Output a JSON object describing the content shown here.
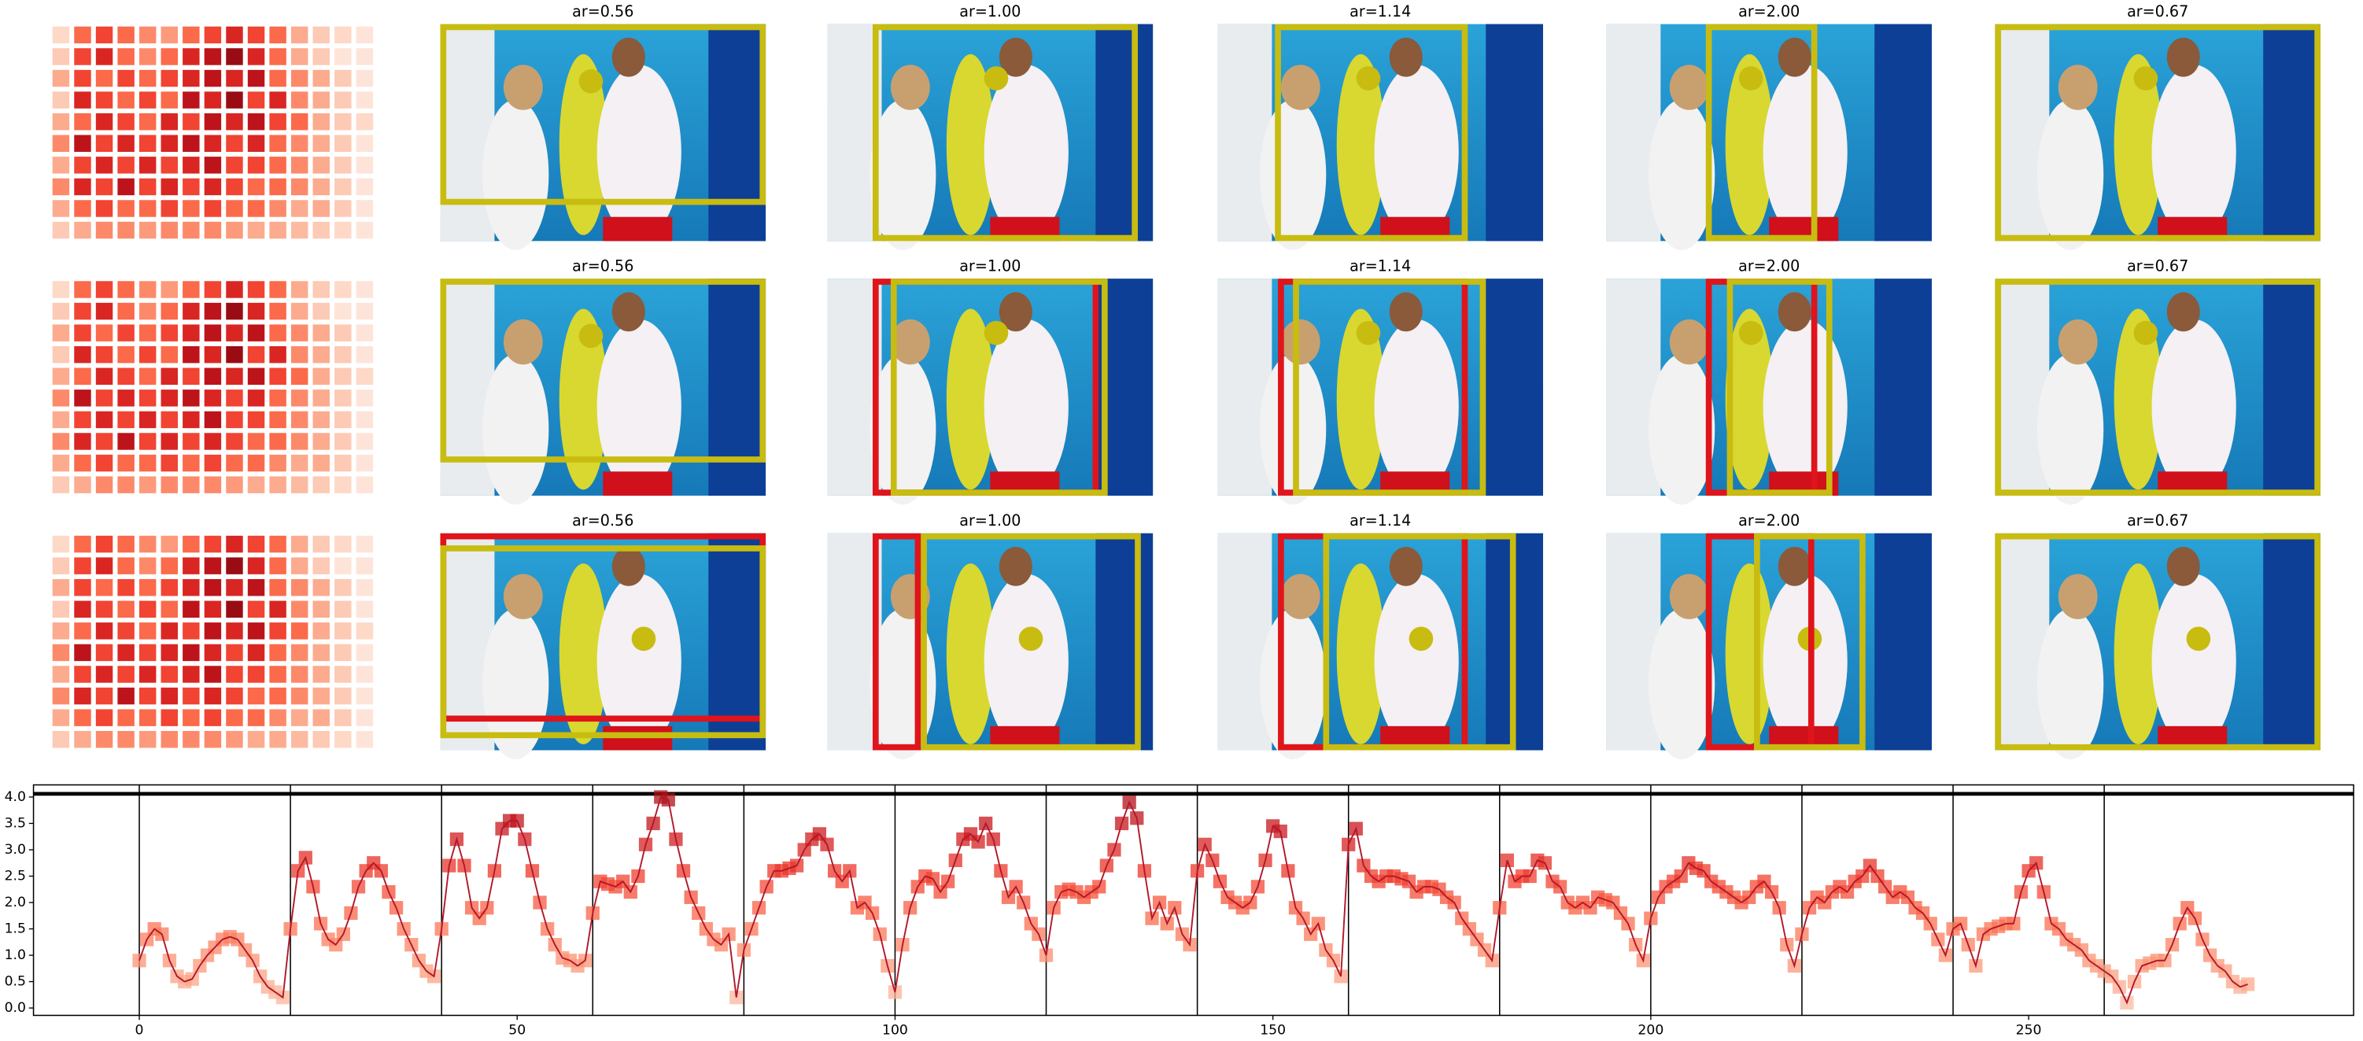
{
  "panel_rows": [
    {
      "titles": [
        "ar=0.56",
        "ar=1.00",
        "ar=1.14",
        "ar=2.00",
        "ar=0.67"
      ]
    },
    {
      "titles": [
        "ar=0.56",
        "ar=1.00",
        "ar=1.14",
        "ar=2.00",
        "ar=0.67"
      ]
    },
    {
      "titles": [
        "ar=0.56",
        "ar=1.00",
        "ar=1.14",
        "ar=2.00",
        "ar=0.67"
      ]
    }
  ],
  "heatmap": [
    [
      0.15,
      0.5,
      0.6,
      0.5,
      0.4,
      0.35,
      0.5,
      0.6,
      0.7,
      0.6,
      0.5,
      0.3,
      0.2,
      0.15,
      0.1
    ],
    [
      0.2,
      0.6,
      0.7,
      0.5,
      0.4,
      0.5,
      0.7,
      0.8,
      0.9,
      0.7,
      0.5,
      0.3,
      0.2,
      0.1,
      0.1
    ],
    [
      0.3,
      0.6,
      0.5,
      0.6,
      0.5,
      0.6,
      0.7,
      0.8,
      0.7,
      0.8,
      0.5,
      0.4,
      0.3,
      0.2,
      0.1
    ],
    [
      0.2,
      0.7,
      0.6,
      0.5,
      0.6,
      0.5,
      0.8,
      0.7,
      0.9,
      0.6,
      0.7,
      0.4,
      0.3,
      0.2,
      0.1
    ],
    [
      0.3,
      0.5,
      0.7,
      0.6,
      0.5,
      0.7,
      0.6,
      0.8,
      0.7,
      0.8,
      0.6,
      0.5,
      0.3,
      0.2,
      0.15
    ],
    [
      0.4,
      0.8,
      0.6,
      0.7,
      0.6,
      0.7,
      0.8,
      0.7,
      0.6,
      0.7,
      0.5,
      0.4,
      0.3,
      0.2,
      0.1
    ],
    [
      0.3,
      0.6,
      0.7,
      0.6,
      0.7,
      0.6,
      0.7,
      0.8,
      0.6,
      0.6,
      0.5,
      0.4,
      0.3,
      0.2,
      0.1
    ],
    [
      0.4,
      0.7,
      0.6,
      0.8,
      0.6,
      0.7,
      0.6,
      0.7,
      0.6,
      0.5,
      0.5,
      0.4,
      0.3,
      0.2,
      0.1
    ],
    [
      0.3,
      0.5,
      0.6,
      0.5,
      0.5,
      0.6,
      0.5,
      0.6,
      0.5,
      0.5,
      0.4,
      0.3,
      0.3,
      0.2,
      0.1
    ],
    [
      0.2,
      0.3,
      0.4,
      0.4,
      0.35,
      0.4,
      0.4,
      0.4,
      0.35,
      0.3,
      0.3,
      0.25,
      0.2,
      0.15,
      0.1
    ]
  ],
  "chart_data": {
    "type": "line",
    "colormap": "Reds",
    "line_color": "#b2182b",
    "values": [
      0.9,
      1.3,
      1.5,
      1.4,
      0.9,
      0.6,
      0.5,
      0.55,
      0.8,
      1.0,
      1.15,
      1.3,
      1.35,
      1.3,
      1.1,
      0.9,
      0.6,
      0.4,
      0.3,
      0.2,
      1.5,
      2.6,
      2.85,
      2.3,
      1.6,
      1.3,
      1.2,
      1.4,
      1.8,
      2.3,
      2.6,
      2.75,
      2.6,
      2.2,
      1.9,
      1.5,
      1.2,
      0.9,
      0.7,
      0.6,
      1.5,
      2.7,
      3.2,
      2.7,
      1.9,
      1.7,
      1.9,
      2.6,
      3.4,
      3.55,
      3.55,
      3.2,
      2.6,
      2.0,
      1.5,
      1.2,
      0.95,
      0.9,
      0.8,
      0.9,
      1.8,
      2.4,
      2.35,
      2.3,
      2.4,
      2.2,
      2.5,
      3.1,
      3.5,
      4.0,
      3.95,
      3.2,
      2.6,
      2.1,
      1.8,
      1.5,
      1.3,
      1.2,
      1.4,
      0.2,
      1.1,
      1.5,
      1.9,
      2.3,
      2.6,
      2.6,
      2.65,
      2.7,
      3.0,
      3.2,
      3.3,
      3.1,
      2.6,
      2.4,
      2.6,
      1.9,
      2.0,
      1.8,
      1.4,
      0.8,
      0.3,
      1.2,
      1.9,
      2.3,
      2.5,
      2.45,
      2.2,
      2.4,
      2.8,
      3.2,
      3.3,
      3.15,
      3.5,
      3.2,
      2.6,
      2.1,
      2.3,
      2.0,
      1.6,
      1.4,
      1.0,
      1.9,
      2.2,
      2.25,
      2.2,
      2.1,
      2.2,
      2.3,
      2.7,
      3.0,
      3.5,
      3.9,
      3.6,
      2.6,
      1.7,
      2.0,
      1.6,
      1.9,
      1.4,
      1.2,
      2.6,
      3.1,
      2.8,
      2.4,
      2.1,
      2.0,
      1.9,
      2.0,
      2.3,
      2.8,
      3.45,
      3.35,
      2.6,
      1.9,
      1.7,
      1.4,
      1.6,
      1.1,
      0.9,
      0.6,
      3.1,
      3.4,
      2.7,
      2.5,
      2.4,
      2.5,
      2.5,
      2.45,
      2.4,
      2.2,
      2.3,
      2.3,
      2.25,
      2.1,
      2.0,
      1.7,
      1.5,
      1.3,
      1.1,
      0.9,
      1.9,
      2.8,
      2.4,
      2.5,
      2.5,
      2.8,
      2.75,
      2.4,
      2.3,
      2.0,
      1.9,
      2.0,
      1.9,
      2.1,
      2.05,
      2.0,
      1.8,
      1.6,
      1.2,
      0.9,
      1.7,
      2.1,
      2.3,
      2.4,
      2.5,
      2.75,
      2.65,
      2.6,
      2.4,
      2.3,
      2.2,
      2.1,
      2.0,
      2.1,
      2.3,
      2.4,
      2.2,
      1.9,
      1.2,
      0.8,
      1.4,
      1.9,
      2.1,
      2.0,
      2.2,
      2.3,
      2.2,
      2.4,
      2.5,
      2.7,
      2.5,
      2.3,
      2.1,
      2.2,
      2.1,
      1.9,
      1.8,
      1.6,
      1.3,
      1.0,
      1.5,
      1.6,
      1.2,
      0.8,
      1.4,
      1.5,
      1.55,
      1.6,
      1.6,
      2.2,
      2.6,
      2.75,
      2.2,
      1.6,
      1.5,
      1.3,
      1.2,
      1.1,
      0.9,
      0.8,
      0.7,
      0.6,
      0.4,
      0.1,
      0.5,
      0.8,
      0.85,
      0.9,
      0.9,
      1.2,
      1.6,
      1.9,
      1.7,
      1.3,
      1.0,
      0.8,
      0.7,
      0.5,
      0.4,
      0.45
    ],
    "xlim": [
      -14,
      293
    ],
    "xticks": [
      0,
      50,
      100,
      150,
      200,
      250
    ],
    "ylim": [
      -0.14,
      4.23
    ],
    "yticks": [
      {
        "value": 0,
        "label": "0.0"
      },
      0.5,
      {
        "value": 1,
        "label": "1.0"
      },
      1.5,
      {
        "value": 2,
        "label": "2.0"
      },
      2.5,
      {
        "value": 3,
        "label": "3.0"
      },
      3.5,
      {
        "value": 4,
        "label": "4.0"
      }
    ],
    "vlines": [
      0,
      20,
      40,
      60,
      80,
      100,
      120,
      140,
      160,
      180,
      200,
      220,
      240,
      260
    ],
    "hline": 4.06
  }
}
